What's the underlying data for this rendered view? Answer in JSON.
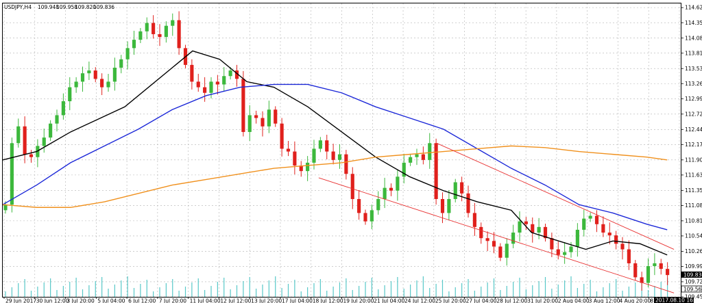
{
  "header": {
    "symbol": "USDJPY,H4",
    "open": "109.948",
    "high": "109.958",
    "low": "109.820",
    "close": "109.836"
  },
  "price_badges": {
    "bid": "109.836",
    "line": "109.562"
  },
  "time_badge": "2017.08.10 16:00",
  "colors": {
    "bull": "#3cb83c",
    "bear": "#e0201c",
    "ma_black": "#000000",
    "ma_blue": "#1c28d8",
    "ma_orange": "#f0901c",
    "channel": "#e83030",
    "volume": "#58c8c8",
    "grid": "#b0b0b0"
  },
  "chart_data": {
    "type": "line",
    "ylim": [
      109.45,
      114.7
    ],
    "y_ticks": [
      "114.625",
      "114.355",
      "114.080",
      "113.810",
      "113.535",
      "113.265",
      "112.995",
      "112.720",
      "112.445",
      "112.175",
      "111.900",
      "111.630",
      "111.355",
      "111.085",
      "110.810",
      "110.540",
      "110.265",
      "109.995",
      "109.720",
      "109.450"
    ],
    "x_ticks": [
      "29 Jun 2017",
      "30 Jun 12:00",
      "3 Jul 20:00",
      "5 Jul 04:00",
      "6 Jul 12:00",
      "7 Jul 20:00",
      "11 Jul 04:00",
      "12 Jul 12:00",
      "13 Jul 20:00",
      "17 Jul 04:00",
      "18 Jul 12:00",
      "19 Jul 20:00",
      "21 Jul 04:00",
      "24 Jul 12:00",
      "25 Jul 20:00",
      "27 Jul 04:00",
      "28 Jul 12:00",
      "31 Jul 20:00",
      "2 Aug 04:00",
      "3 Aug 12:00",
      "4 Aug 20:00",
      "8 Aug 04:00",
      "9 A"
    ],
    "close_series": [
      111.1,
      112.2,
      112.5,
      112.0,
      111.95,
      112.15,
      112.3,
      112.55,
      112.7,
      112.95,
      113.2,
      113.3,
      113.45,
      113.5,
      113.35,
      113.2,
      113.3,
      113.55,
      113.7,
      113.9,
      114.05,
      114.2,
      114.35,
      114.15,
      114.1,
      114.3,
      114.4,
      113.9,
      113.6,
      113.3,
      113.2,
      113.1,
      113.3,
      113.25,
      113.4,
      113.5,
      113.35,
      112.4,
      112.7,
      112.65,
      112.5,
      112.8,
      112.55,
      112.1,
      112.05,
      111.8,
      111.7,
      111.85,
      112.1,
      112.25,
      112.05,
      111.9,
      112.0,
      111.65,
      111.2,
      110.95,
      110.8,
      111.0,
      111.2,
      111.4,
      111.35,
      111.6,
      111.85,
      111.95,
      112.0,
      111.9,
      112.2,
      111.2,
      110.95,
      111.2,
      111.5,
      111.3,
      110.95,
      110.7,
      110.5,
      110.45,
      110.35,
      110.15,
      110.4,
      110.6,
      110.8,
      110.75,
      110.6,
      110.7,
      110.5,
      110.3,
      110.2,
      110.25,
      110.35,
      110.65,
      110.85,
      110.9,
      110.75,
      110.6,
      110.55,
      110.4,
      110.3,
      110.05,
      109.8,
      109.7,
      110.0,
      110.05,
      109.95,
      109.84
    ],
    "series": [
      {
        "name": "",
        "color": "#000000",
        "x": [
          0,
          0.05,
          0.1,
          0.18,
          0.26,
          0.28,
          0.32,
          0.36,
          0.4,
          0.45,
          0.5,
          0.55,
          0.6,
          0.65,
          0.7,
          0.75,
          0.78,
          0.82,
          0.86,
          0.9,
          0.94,
          0.98
        ],
        "y": [
          111.9,
          112.05,
          112.4,
          112.85,
          113.65,
          113.85,
          113.7,
          113.3,
          113.2,
          112.85,
          112.4,
          111.95,
          111.6,
          111.35,
          111.15,
          111.0,
          110.6,
          110.45,
          110.3,
          110.45,
          110.4,
          110.2
        ]
      },
      {
        "name": "",
        "color": "#1c28d8",
        "x": [
          0,
          0.05,
          0.1,
          0.15,
          0.2,
          0.25,
          0.3,
          0.35,
          0.4,
          0.45,
          0.5,
          0.55,
          0.6,
          0.65,
          0.7,
          0.75,
          0.8,
          0.85,
          0.9,
          0.95,
          0.98
        ],
        "y": [
          111.1,
          111.45,
          111.85,
          112.15,
          112.45,
          112.8,
          113.05,
          113.2,
          113.25,
          113.25,
          113.1,
          112.85,
          112.65,
          112.45,
          112.1,
          111.75,
          111.45,
          111.1,
          110.95,
          110.75,
          110.65
        ]
      },
      {
        "name": "",
        "color": "#f0901c",
        "x": [
          0,
          0.05,
          0.1,
          0.15,
          0.2,
          0.25,
          0.3,
          0.35,
          0.4,
          0.45,
          0.5,
          0.55,
          0.6,
          0.65,
          0.7,
          0.75,
          0.8,
          0.85,
          0.9,
          0.95,
          0.98
        ],
        "y": [
          111.1,
          111.05,
          111.05,
          111.15,
          111.3,
          111.45,
          111.55,
          111.65,
          111.75,
          111.8,
          111.85,
          111.95,
          112.0,
          112.05,
          112.1,
          112.15,
          112.12,
          112.05,
          112.0,
          111.95,
          111.9
        ]
      }
    ],
    "channel_lines": [
      {
        "from": {
          "x": 0.466,
          "y": 111.58
        },
        "to": {
          "x": 0.99,
          "y": 109.52
        }
      },
      {
        "from": {
          "x": 0.64,
          "y": 112.2
        },
        "to": {
          "x": 0.99,
          "y": 110.3
        }
      }
    ],
    "grid": true,
    "legend": "none"
  }
}
